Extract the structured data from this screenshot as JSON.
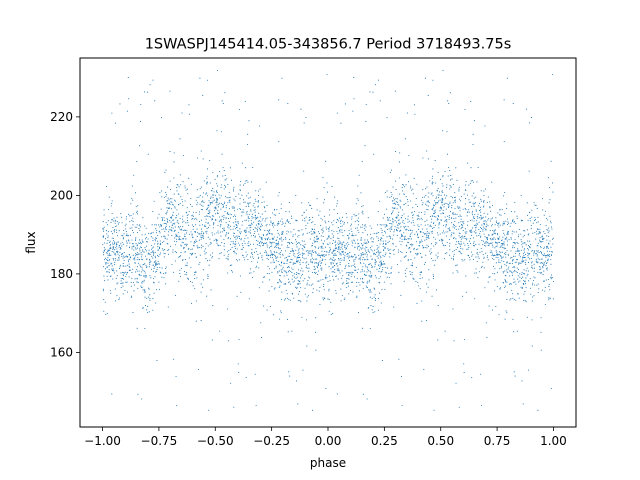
{
  "chart_data": {
    "type": "scatter",
    "title": "1SWASPJ145414.05-343856.7 Period 3718493.75s",
    "xlabel": "phase",
    "ylabel": "flux",
    "xlim": [
      -1.1,
      1.1
    ],
    "ylim": [
      141,
      235
    ],
    "x_ticks": [
      -1.0,
      -0.75,
      -0.5,
      -0.25,
      0.0,
      0.25,
      0.5,
      0.75,
      1.0
    ],
    "x_tick_labels": [
      "−1.00",
      "−0.75",
      "−0.50",
      "−0.25",
      "0.00",
      "0.25",
      "0.50",
      "0.75",
      "1.00"
    ],
    "y_ticks": [
      160,
      180,
      200,
      220
    ],
    "y_tick_labels": [
      "160",
      "180",
      "200",
      "220"
    ],
    "grid": false,
    "point_color": "#1f77b4",
    "series": [
      {
        "phase_profile": [
          {
            "phase": 0.0,
            "flux": 184,
            "spread": 6
          },
          {
            "phase": 0.05,
            "flux": 187,
            "spread": 6
          },
          {
            "phase": 0.1,
            "flux": 185,
            "spread": 6
          },
          {
            "phase": 0.15,
            "flux": 186,
            "spread": 5
          },
          {
            "phase": 0.2,
            "flux": 180,
            "spread": 6
          },
          {
            "phase": 0.25,
            "flux": 186,
            "spread": 5
          },
          {
            "phase": 0.3,
            "flux": 195,
            "spread": 6
          },
          {
            "phase": 0.35,
            "flux": 190,
            "spread": 8
          },
          {
            "phase": 0.4,
            "flux": 188,
            "spread": 6
          },
          {
            "phase": 0.45,
            "flux": 192,
            "spread": 7
          },
          {
            "phase": 0.5,
            "flux": 196,
            "spread": 5
          },
          {
            "phase": 0.55,
            "flux": 193,
            "spread": 6
          },
          {
            "phase": 0.6,
            "flux": 190,
            "spread": 6
          },
          {
            "phase": 0.65,
            "flux": 194,
            "spread": 6
          },
          {
            "phase": 0.7,
            "flux": 192,
            "spread": 6
          },
          {
            "phase": 0.75,
            "flux": 187,
            "spread": 6
          },
          {
            "phase": 0.8,
            "flux": 185,
            "spread": 6
          },
          {
            "phase": 0.85,
            "flux": 183,
            "spread": 6
          },
          {
            "phase": 0.9,
            "flux": 184,
            "spread": 6
          },
          {
            "phase": 0.95,
            "flux": 186,
            "spread": 6
          },
          {
            "phase": 1.0,
            "flux": 184,
            "spread": 6
          }
        ],
        "mirrored": true,
        "outlier_range": [
          145,
          232
        ]
      }
    ]
  }
}
